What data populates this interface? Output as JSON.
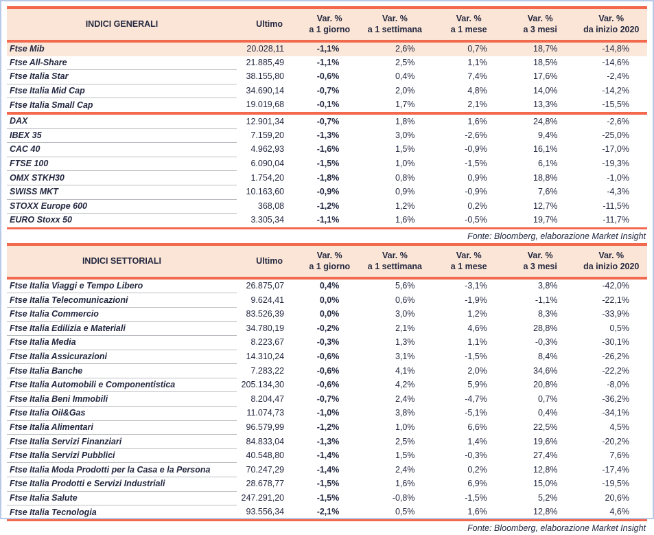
{
  "page": {
    "colors": {
      "accent": "#f2694e",
      "header_bg": "#fbe5d6",
      "highlight_bg": "#fbe8db",
      "text": "#232840",
      "row_line": "#b9bcc0",
      "page_border": "#b7c9e6"
    }
  },
  "tables": [
    {
      "title": "INDICI GENERALI",
      "ultimo_label": "Ultimo",
      "var_headers": [
        {
          "line1": "Var. %",
          "line2": "a 1 giorno"
        },
        {
          "line1": "Var. %",
          "line2": "a 1 settimana"
        },
        {
          "line1": "Var. %",
          "line2": "a 1 mese"
        },
        {
          "line1": "Var. %",
          "line2": "a 3 mesi"
        },
        {
          "line1": "Var. %",
          "line2": "da inizio 2020"
        }
      ],
      "source": "Fonte: Bloomberg, elaborazione Market Insight",
      "groups": [
        {
          "rows": [
            {
              "name": "Ftse Mib",
              "highlight": true,
              "values": [
                "20.028,11",
                "-1,1%",
                "2,6%",
                "0,7%",
                "18,7%",
                "-14,8%"
              ]
            },
            {
              "name": "Ftse All-Share",
              "values": [
                "21.885,49",
                "-1,1%",
                "2,5%",
                "1,1%",
                "18,5%",
                "-14,6%"
              ]
            },
            {
              "name": "Ftse Italia Star",
              "values": [
                "38.155,80",
                "-0,6%",
                "0,4%",
                "7,4%",
                "17,6%",
                "-2,4%"
              ]
            },
            {
              "name": "Ftse Italia Mid Cap",
              "values": [
                "34.690,14",
                "-0,7%",
                "2,0%",
                "4,8%",
                "14,0%",
                "-14,2%"
              ]
            },
            {
              "name": "Ftse Italia Small Cap",
              "values": [
                "19.019,68",
                "-0,1%",
                "1,7%",
                "2,1%",
                "13,3%",
                "-15,5%"
              ]
            }
          ]
        },
        {
          "rows": [
            {
              "name": "DAX",
              "values": [
                "12.901,34",
                "-0,7%",
                "1,8%",
                "1,6%",
                "24,8%",
                "-2,6%"
              ]
            },
            {
              "name": "IBEX 35",
              "values": [
                "7.159,20",
                "-1,3%",
                "3,0%",
                "-2,6%",
                "9,4%",
                "-25,0%"
              ]
            },
            {
              "name": "CAC 40",
              "values": [
                "4.962,93",
                "-1,6%",
                "1,5%",
                "-0,9%",
                "16,1%",
                "-17,0%"
              ]
            },
            {
              "name": "FTSE 100",
              "values": [
                "6.090,04",
                "-1,5%",
                "1,0%",
                "-1,5%",
                "6,1%",
                "-19,3%"
              ]
            },
            {
              "name": "OMX STKH30",
              "values": [
                "1.754,20",
                "-1,8%",
                "0,8%",
                "0,9%",
                "18,8%",
                "-1,0%"
              ]
            },
            {
              "name": "SWISS MKT",
              "values": [
                "10.163,60",
                "-0,9%",
                "0,9%",
                "-0,9%",
                "7,6%",
                "-4,3%"
              ]
            },
            {
              "name": "STOXX Europe 600",
              "values": [
                "368,08",
                "-1,2%",
                "1,2%",
                "0,2%",
                "12,7%",
                "-11,5%"
              ]
            },
            {
              "name": "EURO Stoxx 50",
              "values": [
                "3.305,34",
                "-1,1%",
                "1,6%",
                "-0,5%",
                "19,7%",
                "-11,7%"
              ]
            }
          ]
        }
      ]
    },
    {
      "title": "INDICI SETTORIALI",
      "ultimo_label": "Ultimo",
      "var_headers": [
        {
          "line1": "Var. %",
          "line2": "a 1 giorno"
        },
        {
          "line1": "Var. %",
          "line2": "a 1 settimana"
        },
        {
          "line1": "Var. %",
          "line2": "a 1 mese"
        },
        {
          "line1": "Var. %",
          "line2": "a 3 mesi"
        },
        {
          "line1": "Var. %",
          "line2": "da inizio 2020"
        }
      ],
      "source": "Fonte: Bloomberg, elaborazione Market Insight",
      "groups": [
        {
          "rows": [
            {
              "name": "Ftse Italia Viaggi e Tempo Libero",
              "values": [
                "26.875,07",
                "0,4%",
                "5,6%",
                "-3,1%",
                "3,8%",
                "-42,0%"
              ]
            },
            {
              "name": "Ftse Italia Telecomunicazioni",
              "values": [
                "9.624,41",
                "0,0%",
                "0,6%",
                "-1,9%",
                "-1,1%",
                "-22,1%"
              ]
            },
            {
              "name": "Ftse Italia Commercio",
              "values": [
                "83.526,39",
                "0,0%",
                "3,0%",
                "1,2%",
                "8,3%",
                "-33,9%"
              ]
            },
            {
              "name": "Ftse Italia Edilizia e Materiali",
              "values": [
                "34.780,19",
                "-0,2%",
                "2,1%",
                "4,6%",
                "28,8%",
                "0,5%"
              ]
            },
            {
              "name": "Ftse Italia Media",
              "values": [
                "8.223,67",
                "-0,3%",
                "1,3%",
                "1,1%",
                "-0,3%",
                "-30,1%"
              ]
            },
            {
              "name": "Ftse Italia Assicurazioni",
              "values": [
                "14.310,24",
                "-0,6%",
                "3,1%",
                "-1,5%",
                "8,4%",
                "-26,2%"
              ]
            },
            {
              "name": "Ftse Italia Banche",
              "values": [
                "7.283,22",
                "-0,6%",
                "4,1%",
                "2,0%",
                "34,6%",
                "-22,2%"
              ]
            },
            {
              "name": "Ftse Italia Automobili e Componentistica",
              "values": [
                "205.134,30",
                "-0,6%",
                "4,2%",
                "5,9%",
                "20,8%",
                "-8,0%"
              ]
            },
            {
              "name": "Ftse Italia Beni Immobili",
              "values": [
                "8.204,47",
                "-0,7%",
                "2,4%",
                "-4,7%",
                "0,7%",
                "-36,2%"
              ]
            },
            {
              "name": "Ftse Italia Oil&Gas",
              "values": [
                "11.074,73",
                "-1,0%",
                "3,8%",
                "-5,1%",
                "0,4%",
                "-34,1%"
              ]
            },
            {
              "name": "Ftse Italia Alimentari",
              "values": [
                "96.579,99",
                "-1,2%",
                "1,0%",
                "6,6%",
                "22,5%",
                "4,5%"
              ]
            },
            {
              "name": "Ftse Italia Servizi Finanziari",
              "values": [
                "84.833,04",
                "-1,3%",
                "2,5%",
                "1,4%",
                "19,6%",
                "-20,2%"
              ]
            },
            {
              "name": "Ftse Italia Servizi Pubblici",
              "values": [
                "40.548,80",
                "-1,4%",
                "1,5%",
                "-0,3%",
                "27,4%",
                "7,6%"
              ]
            },
            {
              "name": "Ftse Italia Moda Prodotti per la Casa e la Persona",
              "values": [
                "70.247,29",
                "-1,4%",
                "2,4%",
                "0,2%",
                "12,8%",
                "-17,4%"
              ]
            },
            {
              "name": "Ftse Italia Prodotti e Servizi Industriali",
              "values": [
                "28.678,77",
                "-1,5%",
                "1,6%",
                "6,9%",
                "15,0%",
                "-19,5%"
              ]
            },
            {
              "name": "Ftse Italia Salute",
              "values": [
                "247.291,20",
                "-1,5%",
                "-0,8%",
                "-1,5%",
                "5,2%",
                "20,6%"
              ]
            },
            {
              "name": "Ftse Italia Tecnologia",
              "values": [
                "93.556,34",
                "-2,1%",
                "0,5%",
                "1,6%",
                "12,8%",
                "4,6%"
              ]
            }
          ]
        }
      ]
    }
  ]
}
